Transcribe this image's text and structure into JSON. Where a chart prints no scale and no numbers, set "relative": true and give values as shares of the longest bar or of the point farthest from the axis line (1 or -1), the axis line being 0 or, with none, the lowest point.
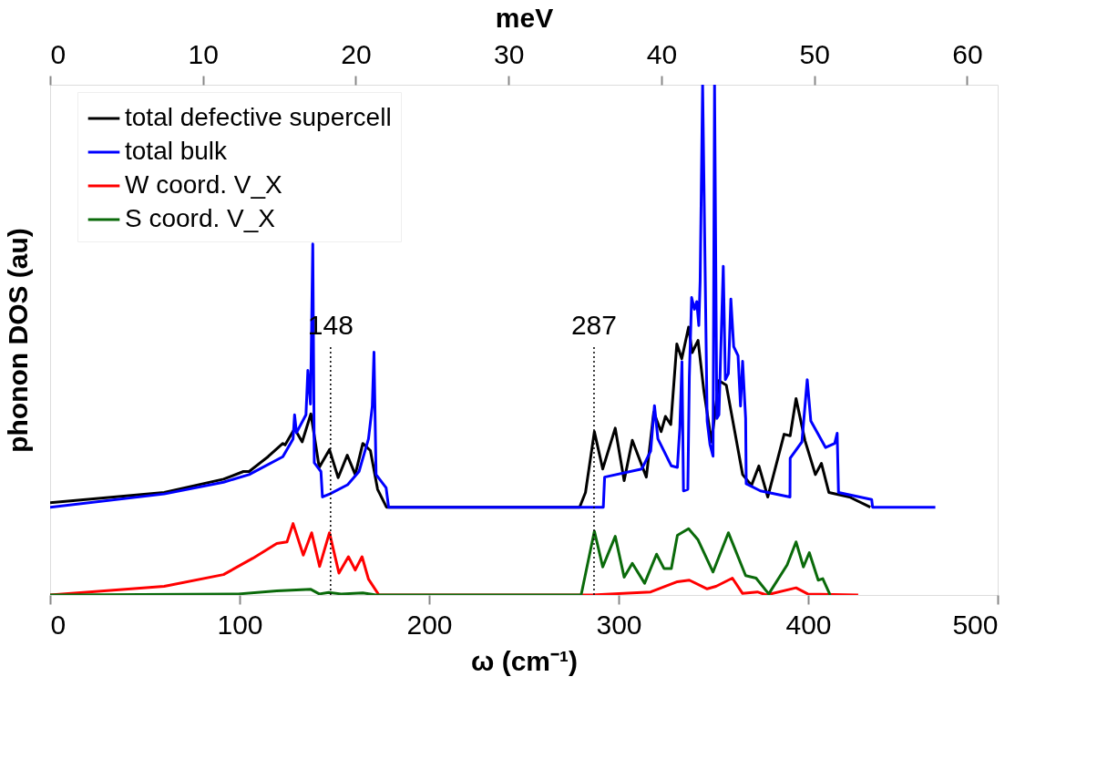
{
  "chart_data": {
    "type": "line",
    "relative": true,
    "xlabel": "ω (cm⁻¹)",
    "ylabel": "phonon DOS (au)",
    "x2label": "meV",
    "xlim": [
      0,
      500
    ],
    "xticks": [
      0,
      100,
      200,
      300,
      400,
      500
    ],
    "x2lim": [
      0,
      62.0
    ],
    "x2ticks": [
      0,
      10,
      20,
      30,
      40,
      50,
      60
    ],
    "grid": false,
    "legend": "top",
    "marker": "none",
    "line_style": "solid",
    "ref_lines": [
      {
        "axis": "x",
        "value": 148,
        "label": "148",
        "color": "#000000",
        "line_style": "dotted"
      },
      {
        "axis": "x",
        "value": 287,
        "label": "287",
        "color": "#000000",
        "line_style": "dotted"
      }
    ],
    "series": [
      {
        "name": "total defective supercell",
        "color": "#000000",
        "x": [
          0,
          60.2,
          91.5,
          102,
          105,
          115,
          122.8,
          124,
          129,
          133,
          137.6,
          142,
          147.4,
          152,
          156.8,
          161,
          165,
          169,
          172.8,
          177.5,
          279.4,
          282.5,
          287.2,
          291.6,
          298.2,
          302.9,
          307.2,
          314.6,
          318.5,
          322.4,
          324.7,
          327.5,
          330.7,
          333.3,
          336.9,
          338.8,
          341.9,
          345,
          349,
          352.9,
          356.8,
          365.4,
          370.1,
          374,
          378.7,
          387.3,
          390.5,
          393.6,
          398.3,
          403.8,
          407,
          410.9,
          421.8,
          432.8
        ],
        "values": [
          0.181,
          0.201,
          0.227,
          0.242,
          0.242,
          0.271,
          0.297,
          0.294,
          0.326,
          0.3,
          0.355,
          0.25,
          0.285,
          0.23,
          0.274,
          0.236,
          0.297,
          0.283,
          0.207,
          0.172,
          0.172,
          0.201,
          0.32,
          0.247,
          0.327,
          0.224,
          0.303,
          0.231,
          0.358,
          0.32,
          0.35,
          0.334,
          0.492,
          0.463,
          0.525,
          0.475,
          0.499,
          0.399,
          0.3,
          0.42,
          0.411,
          0.236,
          0.215,
          0.253,
          0.192,
          0.315,
          0.312,
          0.385,
          0.303,
          0.236,
          0.258,
          0.201,
          0.192,
          0.172
        ]
      },
      {
        "name": "total bulk",
        "color": "#0000ff",
        "x": [
          0,
          60.2,
          91.5,
          105,
          122.8,
          128.2,
          129,
          130,
          135,
          136,
          137.4,
          138.6,
          139.4,
          142.9,
          143.7,
          147.6,
          157,
          163,
          168,
          170,
          170.9,
          172,
          177.3,
          178.6,
          291.9,
          292.6,
          312.2,
          316.9,
          318.9,
          320.7,
          327.8,
          331,
          332.3,
          333.4,
          334.2,
          336.5,
          337.3,
          338.5,
          340,
          341.2,
          342.3,
          343,
          344.3,
          346.7,
          348.2,
          349.8,
          350.6,
          351.8,
          352.9,
          355.2,
          356.3,
          357.9,
          359.2,
          360.7,
          363,
          364.3,
          365.4,
          367,
          367.3,
          374.8,
          390.4,
          390.5,
          396.7,
          399.5,
          401.4,
          409.2,
          414,
          415.3,
          416,
          433.5,
          434,
          467.1
        ],
        "values": [
          0.172,
          0.198,
          0.221,
          0.236,
          0.271,
          0.306,
          0.353,
          0.318,
          0.353,
          0.44,
          0.374,
          0.688,
          0.259,
          0.242,
          0.192,
          0.198,
          0.216,
          0.242,
          0.306,
          0.37,
          0.476,
          0.236,
          0.21,
          0.172,
          0.172,
          0.231,
          0.247,
          0.282,
          0.371,
          0.306,
          0.253,
          0.25,
          0.329,
          0.457,
          0.204,
          0.207,
          0.428,
          0.583,
          0.56,
          0.575,
          0.528,
          0.615,
          1.0,
          0.341,
          0.295,
          0.272,
          1.0,
          0.346,
          0.353,
          0.644,
          0.422,
          0.434,
          0.58,
          0.487,
          0.469,
          0.37,
          0.458,
          0.346,
          0.218,
          0.204,
          0.192,
          0.268,
          0.3,
          0.422,
          0.341,
          0.289,
          0.297,
          0.317,
          0.201,
          0.187,
          0.172,
          0.172
        ]
      },
      {
        "name": "W coord. V_X",
        "color": "#ff0000",
        "x": [
          0,
          60.2,
          91.5,
          107,
          119.6,
          125,
          128.2,
          133.6,
          138,
          142.2,
          147.4,
          152.4,
          157.4,
          161,
          164.6,
          168,
          173.5,
          286,
          316.9,
          331,
          337.3,
          346.7,
          351.4,
          360,
          365.4,
          373.2,
          377.9,
          393.6,
          399.8,
          426.4
        ],
        "values": [
          0,
          0.017,
          0.04,
          0.072,
          0.101,
          0.104,
          0.14,
          0.078,
          0.122,
          0.056,
          0.122,
          0.043,
          0.075,
          0.049,
          0.075,
          0.031,
          0,
          0,
          0.006,
          0.026,
          0.029,
          0.012,
          0.017,
          0.033,
          0.003,
          0.006,
          0,
          0.014,
          0.002,
          0
        ]
      },
      {
        "name": "S coord. V_X",
        "color": "#0a6a0a",
        "x": [
          0,
          99.3,
          119.6,
          137.6,
          142,
          147,
          153.6,
          165,
          172,
          280.2,
          287.2,
          291.6,
          298.2,
          302.9,
          307.2,
          313.7,
          320,
          323.9,
          327.8,
          331,
          336.9,
          341.9,
          349.8,
          357.9,
          367,
          372.5,
          379.2,
          388.9,
          393.6,
          397.5,
          400.6,
          405.3,
          407.7,
          411.6
        ],
        "values": [
          0,
          0.002,
          0.008,
          0.011,
          0.002,
          0.005,
          0.002,
          0.004,
          0,
          0,
          0.125,
          0.055,
          0.115,
          0.035,
          0.062,
          0.023,
          0.08,
          0.052,
          0.052,
          0.117,
          0.13,
          0.108,
          0.045,
          0.122,
          0.038,
          0.033,
          0.002,
          0.059,
          0.104,
          0.055,
          0.083,
          0.029,
          0.032,
          0
        ]
      }
    ]
  }
}
